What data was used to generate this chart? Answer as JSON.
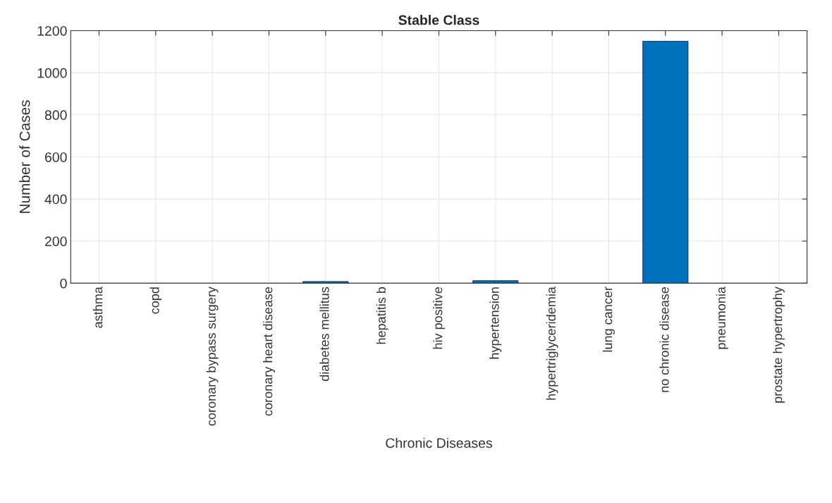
{
  "chart_data": {
    "type": "bar",
    "title": "Stable Class",
    "xlabel": "Chronic Diseases",
    "ylabel": "Number of Cases",
    "categories": [
      "asthma",
      "copd",
      "coronary bypass surgery",
      "coronary heart disease",
      "diabetes mellitus",
      "hepatitis b",
      "hiv positive",
      "hypertension",
      "hypertriglyceridemia",
      "lung cancer",
      "no chronic disease",
      "pneumonia",
      "prostate hypertrophy"
    ],
    "values": [
      0,
      0,
      0,
      0,
      8,
      0,
      0,
      12,
      0,
      0,
      1150,
      0,
      0
    ],
    "color": "#0072bd",
    "ylim": [
      0,
      1200
    ],
    "yticks": [
      0,
      200,
      400,
      600,
      800,
      1000,
      1200
    ],
    "grid": true
  }
}
